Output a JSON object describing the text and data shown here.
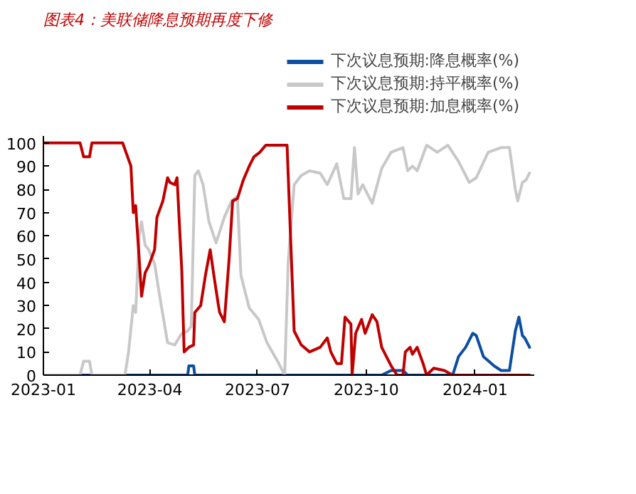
{
  "chart_data": {
    "type": "line",
    "title": "图表4：美联储降息预期再度下修",
    "xlim": [
      "2023-01-01",
      "2024-02-20"
    ],
    "ylim": [
      0,
      103
    ],
    "xticks": [
      {
        "value": "2023-01",
        "label": "2023-01"
      },
      {
        "value": "2023-04",
        "label": "2023-04"
      },
      {
        "value": "2023-07",
        "label": "2023-07"
      },
      {
        "value": "2023-10",
        "label": "2023-10"
      },
      {
        "value": "2024-01",
        "label": "2024-01"
      }
    ],
    "yticks": [
      0,
      10,
      20,
      30,
      40,
      50,
      60,
      70,
      80,
      90,
      100
    ],
    "grid": false,
    "legend": "top right",
    "line_style": "solid",
    "marker": "none",
    "series": [
      {
        "name": "下次议息预期:降息概率(%)",
        "color": "#0b4ea2",
        "x": [
          "2023-01-01",
          "2023-05-03",
          "2023-05-04",
          "2023-05-08",
          "2023-05-09",
          "2023-10-14",
          "2023-10-22",
          "2023-11-01",
          "2023-11-05",
          "2023-12-13",
          "2023-12-18",
          "2023-12-24",
          "2023-12-30",
          "2024-01-02",
          "2024-01-08",
          "2024-01-17",
          "2024-01-23",
          "2024-01-30",
          "2024-02-04",
          "2024-02-07",
          "2024-02-10",
          "2024-02-12",
          "2024-02-16"
        ],
        "values": [
          0,
          0,
          4,
          4,
          0,
          0,
          2,
          2,
          0,
          0,
          8,
          12,
          18,
          17,
          8,
          4,
          2,
          2,
          19,
          25,
          17,
          16,
          12
        ]
      },
      {
        "name": "下次议息预期:持平概率(%)",
        "color": "#c8c8c8",
        "x": [
          "2023-01-01",
          "2023-02-01",
          "2023-02-04",
          "2023-02-09",
          "2023-02-11",
          "2023-03-11",
          "2023-03-14",
          "2023-03-18",
          "2023-03-20",
          "2023-03-23",
          "2023-03-25",
          "2023-03-28",
          "2023-03-31",
          "2023-04-05",
          "2023-04-09",
          "2023-04-16",
          "2023-04-22",
          "2023-04-28",
          "2023-05-03",
          "2023-05-06",
          "2023-05-09",
          "2023-05-12",
          "2023-05-16",
          "2023-05-21",
          "2023-05-27",
          "2023-06-03",
          "2023-06-09",
          "2023-06-14",
          "2023-06-17",
          "2023-06-24",
          "2023-07-02",
          "2023-07-09",
          "2023-07-18",
          "2023-07-24",
          "2023-07-27",
          "2023-08-01",
          "2023-08-07",
          "2023-08-14",
          "2023-08-23",
          "2023-08-29",
          "2023-09-06",
          "2023-09-12",
          "2023-09-18",
          "2023-09-21",
          "2023-09-24",
          "2023-09-28",
          "2023-10-02",
          "2023-10-06",
          "2023-10-14",
          "2023-10-22",
          "2023-11-01",
          "2023-11-05",
          "2023-11-09",
          "2023-11-13",
          "2023-11-21",
          "2023-11-30",
          "2023-12-09",
          "2023-12-18",
          "2023-12-27",
          "2024-01-02",
          "2024-01-12",
          "2024-01-23",
          "2024-01-30",
          "2024-02-04",
          "2024-02-06",
          "2024-02-10",
          "2024-02-13",
          "2024-02-16"
        ],
        "values": [
          0,
          0,
          6,
          6,
          0,
          0,
          10,
          30,
          27,
          60,
          66,
          56,
          54,
          48,
          35,
          14,
          13,
          18,
          19,
          21,
          86,
          88,
          82,
          66,
          57,
          68,
          75,
          77,
          43,
          29,
          24,
          14,
          6,
          0,
          49,
          82,
          86,
          88,
          87,
          82,
          91,
          76,
          76,
          98,
          78,
          82,
          78,
          74,
          89,
          96,
          98,
          88,
          90,
          88,
          99,
          96,
          99,
          92,
          83,
          85,
          96,
          98,
          98,
          80,
          75,
          83,
          84,
          87
        ]
      },
      {
        "name": "下次议息预期:加息概率(%)",
        "color": "#c00000",
        "x": [
          "2023-01-01",
          "2023-02-01",
          "2023-02-04",
          "2023-02-09",
          "2023-02-11",
          "2023-03-09",
          "2023-03-16",
          "2023-03-18",
          "2023-03-20",
          "2023-03-23",
          "2023-03-25",
          "2023-03-28",
          "2023-03-31",
          "2023-04-05",
          "2023-04-07",
          "2023-04-12",
          "2023-04-16",
          "2023-04-18",
          "2023-04-22",
          "2023-04-24",
          "2023-04-28",
          "2023-04-30",
          "2023-05-04",
          "2023-05-08",
          "2023-05-09",
          "2023-05-14",
          "2023-05-18",
          "2023-05-22",
          "2023-05-26",
          "2023-05-29",
          "2023-05-30",
          "2023-06-03",
          "2023-06-07",
          "2023-06-10",
          "2023-06-14",
          "2023-06-19",
          "2023-06-24",
          "2023-06-28",
          "2023-07-03",
          "2023-07-08",
          "2023-07-26",
          "2023-08-01",
          "2023-08-07",
          "2023-08-14",
          "2023-08-23",
          "2023-08-29",
          "2023-09-01",
          "2023-09-06",
          "2023-09-10",
          "2023-09-13",
          "2023-09-18",
          "2023-09-19",
          "2023-09-22",
          "2023-09-27",
          "2023-09-30",
          "2023-10-06",
          "2023-10-10",
          "2023-10-14",
          "2023-10-22",
          "2023-10-27",
          "2023-11-01",
          "2023-11-03",
          "2023-11-07",
          "2023-11-09",
          "2023-11-13",
          "2023-11-18",
          "2023-11-21",
          "2023-11-27",
          "2023-12-06",
          "2023-12-13",
          "2024-02-16"
        ],
        "values": [
          100,
          100,
          94,
          94,
          100,
          100,
          90,
          70,
          73,
          50,
          34,
          44,
          47,
          54,
          68,
          75,
          85,
          83,
          82,
          85,
          45,
          10,
          12,
          13,
          27,
          30,
          43,
          54,
          40,
          30,
          27,
          23,
          50,
          75,
          76,
          84,
          90,
          94,
          96,
          99,
          99,
          19,
          13,
          10,
          12,
          16,
          10,
          5,
          5,
          25,
          22,
          0,
          18,
          24,
          18,
          26,
          23,
          12,
          4,
          0,
          0,
          10,
          12,
          9,
          12,
          5,
          0,
          3,
          2,
          0,
          0
        ]
      }
    ]
  }
}
